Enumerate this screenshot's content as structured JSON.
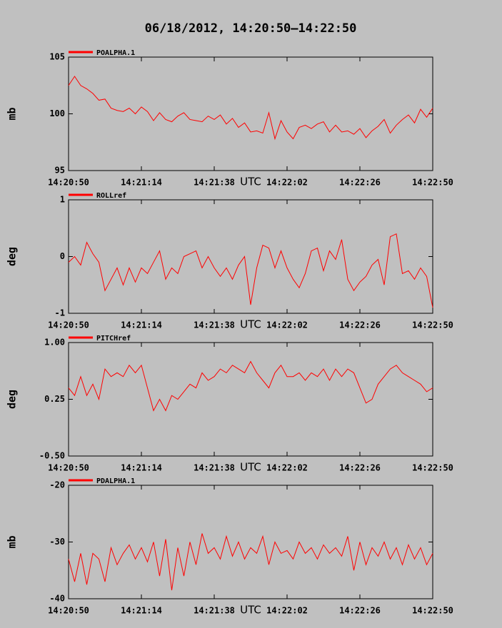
{
  "title": "06/18/2012, 14:20:50–14:22:50",
  "chart_data": [
    {
      "type": "line",
      "ylabel": "mb",
      "xlabel": "UTC",
      "x": [
        "14:20:50",
        "14:20:52",
        "14:20:54",
        "14:20:56",
        "14:20:58",
        "14:21:00",
        "14:21:02",
        "14:21:04",
        "14:21:06",
        "14:21:08",
        "14:21:10",
        "14:21:12",
        "14:21:14",
        "14:21:16",
        "14:21:18",
        "14:21:20",
        "14:21:22",
        "14:21:24",
        "14:21:26",
        "14:21:28",
        "14:21:30",
        "14:21:32",
        "14:21:34",
        "14:21:36",
        "14:21:38",
        "14:21:40",
        "14:21:42",
        "14:21:44",
        "14:21:46",
        "14:21:48",
        "14:21:50",
        "14:21:52",
        "14:21:54",
        "14:21:56",
        "14:21:58",
        "14:22:00",
        "14:22:02",
        "14:22:04",
        "14:22:06",
        "14:22:08",
        "14:22:10",
        "14:22:12",
        "14:22:14",
        "14:22:16",
        "14:22:18",
        "14:22:20",
        "14:22:22",
        "14:22:24",
        "14:22:26",
        "14:22:28",
        "14:22:30",
        "14:22:32",
        "14:22:34",
        "14:22:36",
        "14:22:38",
        "14:22:40",
        "14:22:42",
        "14:22:44",
        "14:22:46",
        "14:22:48",
        "14:22:50"
      ],
      "series": [
        {
          "name": "POALPHA.1",
          "color": "#ff0000",
          "values": [
            102.5,
            103.3,
            102.5,
            102.2,
            101.8,
            101.2,
            101.3,
            100.5,
            100.3,
            100.2,
            100.5,
            100,
            100.6,
            100.2,
            99.4,
            100.1,
            99.5,
            99.3,
            99.8,
            100.1,
            99.5,
            99.4,
            99.3,
            99.8,
            99.5,
            99.9,
            99.1,
            99.6,
            98.8,
            99.2,
            98.4,
            98.5,
            98.3,
            100.1,
            97.8,
            99.4,
            98.4,
            97.8,
            98.8,
            99,
            98.7,
            99.1,
            99.3,
            98.4,
            99,
            98.4,
            98.5,
            98.2,
            98.7,
            97.9,
            98.5,
            98.9,
            99.5,
            98.3,
            99,
            99.5,
            99.9,
            99.2,
            100.4,
            99.7,
            100.5
          ]
        }
      ],
      "xlim": [
        "14:20:50",
        "14:22:50"
      ],
      "xticks": [
        "14:20:50",
        "14:21:14",
        "14:21:38",
        "14:22:02",
        "14:22:26",
        "14:22:50"
      ],
      "ylim": [
        95,
        105
      ],
      "yticks": [
        95,
        100,
        105
      ]
    },
    {
      "type": "line",
      "ylabel": "deg",
      "xlabel": "UTC",
      "x": [
        "14:20:50",
        "14:20:52",
        "14:20:54",
        "14:20:56",
        "14:20:58",
        "14:21:00",
        "14:21:02",
        "14:21:04",
        "14:21:06",
        "14:21:08",
        "14:21:10",
        "14:21:12",
        "14:21:14",
        "14:21:16",
        "14:21:18",
        "14:21:20",
        "14:21:22",
        "14:21:24",
        "14:21:26",
        "14:21:28",
        "14:21:30",
        "14:21:32",
        "14:21:34",
        "14:21:36",
        "14:21:38",
        "14:21:40",
        "14:21:42",
        "14:21:44",
        "14:21:46",
        "14:21:48",
        "14:21:50",
        "14:21:52",
        "14:21:54",
        "14:21:56",
        "14:21:58",
        "14:22:00",
        "14:22:02",
        "14:22:04",
        "14:22:06",
        "14:22:08",
        "14:22:10",
        "14:22:12",
        "14:22:14",
        "14:22:16",
        "14:22:18",
        "14:22:20",
        "14:22:22",
        "14:22:24",
        "14:22:26",
        "14:22:28",
        "14:22:30",
        "14:22:32",
        "14:22:34",
        "14:22:36",
        "14:22:38",
        "14:22:40",
        "14:22:42",
        "14:22:44",
        "14:22:46",
        "14:22:48",
        "14:22:50"
      ],
      "series": [
        {
          "name": "ROLLref",
          "color": "#ff0000",
          "values": [
            -0.1,
            0.0,
            -0.15,
            0.25,
            0.05,
            -0.1,
            -0.6,
            -0.4,
            -0.2,
            -0.5,
            -0.2,
            -0.45,
            -0.2,
            -0.3,
            -0.1,
            0.1,
            -0.4,
            -0.2,
            -0.3,
            0.0,
            0.05,
            0.1,
            -0.2,
            0.0,
            -0.2,
            -0.35,
            -0.2,
            -0.4,
            -0.15,
            0.0,
            -0.85,
            -0.2,
            0.2,
            0.15,
            -0.2,
            0.1,
            -0.2,
            -0.4,
            -0.55,
            -0.3,
            0.1,
            0.15,
            -0.25,
            0.1,
            -0.05,
            0.3,
            -0.4,
            -0.6,
            -0.45,
            -0.35,
            -0.15,
            -0.05,
            -0.5,
            0.35,
            0.4,
            -0.3,
            -0.25,
            -0.4,
            -0.2,
            -0.35,
            -0.9
          ]
        }
      ],
      "xlim": [
        "14:20:50",
        "14:22:50"
      ],
      "xticks": [
        "14:20:50",
        "14:21:14",
        "14:21:38",
        "14:22:02",
        "14:22:26",
        "14:22:50"
      ],
      "ylim": [
        -1,
        1
      ],
      "yticks": [
        -1,
        0,
        1
      ]
    },
    {
      "type": "line",
      "ylabel": "deg",
      "xlabel": "UTC",
      "x": [
        "14:20:50",
        "14:20:52",
        "14:20:54",
        "14:20:56",
        "14:20:58",
        "14:21:00",
        "14:21:02",
        "14:21:04",
        "14:21:06",
        "14:21:08",
        "14:21:10",
        "14:21:12",
        "14:21:14",
        "14:21:16",
        "14:21:18",
        "14:21:20",
        "14:21:22",
        "14:21:24",
        "14:21:26",
        "14:21:28",
        "14:21:30",
        "14:21:32",
        "14:21:34",
        "14:21:36",
        "14:21:38",
        "14:21:40",
        "14:21:42",
        "14:21:44",
        "14:21:46",
        "14:21:48",
        "14:21:50",
        "14:21:52",
        "14:21:54",
        "14:21:56",
        "14:21:58",
        "14:22:00",
        "14:22:02",
        "14:22:04",
        "14:22:06",
        "14:22:08",
        "14:22:10",
        "14:22:12",
        "14:22:14",
        "14:22:16",
        "14:22:18",
        "14:22:20",
        "14:22:22",
        "14:22:24",
        "14:22:26",
        "14:22:28",
        "14:22:30",
        "14:22:32",
        "14:22:34",
        "14:22:36",
        "14:22:38",
        "14:22:40",
        "14:22:42",
        "14:22:44",
        "14:22:46",
        "14:22:48",
        "14:22:50"
      ],
      "series": [
        {
          "name": "PITCHref",
          "color": "#ff0000",
          "values": [
            0.4,
            0.3,
            0.55,
            0.3,
            0.45,
            0.25,
            0.65,
            0.55,
            0.6,
            0.55,
            0.7,
            0.6,
            0.7,
            0.4,
            0.1,
            0.25,
            0.1,
            0.3,
            0.25,
            0.35,
            0.45,
            0.4,
            0.6,
            0.5,
            0.55,
            0.65,
            0.6,
            0.7,
            0.65,
            0.6,
            0.75,
            0.6,
            0.5,
            0.4,
            0.6,
            0.7,
            0.55,
            0.55,
            0.6,
            0.5,
            0.6,
            0.55,
            0.65,
            0.5,
            0.65,
            0.55,
            0.65,
            0.6,
            0.4,
            0.2,
            0.25,
            0.45,
            0.55,
            0.65,
            0.7,
            0.6,
            0.55,
            0.5,
            0.45,
            0.35,
            0.4
          ]
        }
      ],
      "xlim": [
        "14:20:50",
        "14:22:50"
      ],
      "xticks": [
        "14:20:50",
        "14:21:14",
        "14:21:38",
        "14:22:02",
        "14:22:26",
        "14:22:50"
      ],
      "ylim": [
        -0.5,
        1
      ],
      "yticks": [
        {
          "value": -0.5,
          "label": "-0.50"
        },
        {
          "value": 0.25,
          "label": "0.25"
        },
        {
          "value": 1,
          "label": "1.00"
        }
      ]
    },
    {
      "type": "line",
      "ylabel": "mb",
      "xlabel": "UTC",
      "x": [
        "14:20:50",
        "14:20:52",
        "14:20:54",
        "14:20:56",
        "14:20:58",
        "14:21:00",
        "14:21:02",
        "14:21:04",
        "14:21:06",
        "14:21:08",
        "14:21:10",
        "14:21:12",
        "14:21:14",
        "14:21:16",
        "14:21:18",
        "14:21:20",
        "14:21:22",
        "14:21:24",
        "14:21:26",
        "14:21:28",
        "14:21:30",
        "14:21:32",
        "14:21:34",
        "14:21:36",
        "14:21:38",
        "14:21:40",
        "14:21:42",
        "14:21:44",
        "14:21:46",
        "14:21:48",
        "14:21:50",
        "14:21:52",
        "14:21:54",
        "14:21:56",
        "14:21:58",
        "14:22:00",
        "14:22:02",
        "14:22:04",
        "14:22:06",
        "14:22:08",
        "14:22:10",
        "14:22:12",
        "14:22:14",
        "14:22:16",
        "14:22:18",
        "14:22:20",
        "14:22:22",
        "14:22:24",
        "14:22:26",
        "14:22:28",
        "14:22:30",
        "14:22:32",
        "14:22:34",
        "14:22:36",
        "14:22:38",
        "14:22:40",
        "14:22:42",
        "14:22:44",
        "14:22:46",
        "14:22:48",
        "14:22:50"
      ],
      "series": [
        {
          "name": "PDALPHA.1",
          "color": "#ff0000",
          "values": [
            -33,
            -37,
            -32,
            -37.5,
            -32,
            -33,
            -37,
            -31,
            -34,
            -32,
            -30.5,
            -33,
            -31,
            -33.5,
            -30,
            -36,
            -29.5,
            -38.5,
            -31,
            -36,
            -30,
            -34,
            -28.5,
            -32,
            -31,
            -33,
            -29,
            -32.5,
            -30,
            -33,
            -31,
            -32,
            -29,
            -34,
            -30,
            -32,
            -31.5,
            -33,
            -30,
            -32,
            -31,
            -33,
            -30.5,
            -32,
            -31,
            -32.5,
            -29,
            -35,
            -30,
            -34,
            -31,
            -32.5,
            -30,
            -33,
            -31,
            -34,
            -30.5,
            -33,
            -31,
            -34,
            -32
          ]
        }
      ],
      "xlim": [
        "14:20:50",
        "14:22:50"
      ],
      "xticks": [
        "14:20:50",
        "14:21:14",
        "14:21:38",
        "14:22:02",
        "14:22:26",
        "14:22:50"
      ],
      "ylim": [
        -40,
        -20
      ],
      "yticks": [
        -40,
        -30,
        -20
      ]
    }
  ]
}
